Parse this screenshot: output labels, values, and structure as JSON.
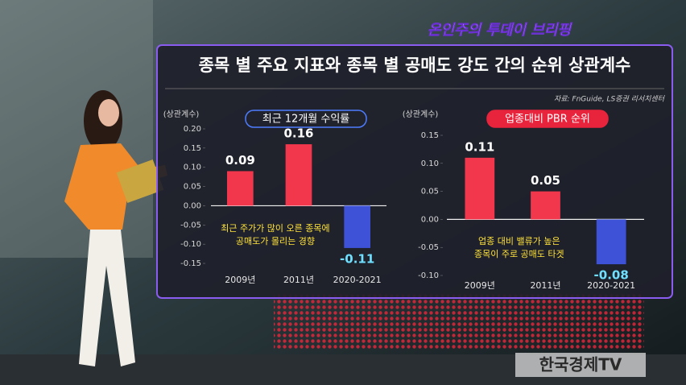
{
  "show_title": "온인주의 투데이 브리핑",
  "headline": "종목 별 주요 지표와 종목 별 공매도 강도 간의 순위 상관계수",
  "source": "자료: FnGuide, LS증권 리서치센터",
  "channel": "한국경제TV",
  "chart_data": [
    {
      "type": "bar",
      "title": "최근 12개월 수익률",
      "y_label": "(상관계수)",
      "categories": [
        "2009년",
        "2011년",
        "2020-2021"
      ],
      "values": [
        0.09,
        0.16,
        -0.11
      ],
      "colors": [
        "#f2364c",
        "#f2364c",
        "#3e52d8"
      ],
      "ylim": [
        -0.15,
        0.2
      ],
      "yticks": [
        {
          "value": 0.2,
          "label": "0.20"
        },
        0.15,
        {
          "value": 0.1,
          "label": "0.10"
        },
        0.05,
        {
          "value": 0,
          "label": "0.00"
        },
        -0.05,
        {
          "value": -0.1,
          "label": "-0.10"
        },
        -0.15
      ],
      "annotation": [
        "최근 주가가 많이 오른 종목에",
        "공매도가 몰리는 경향"
      ],
      "grid": false
    },
    {
      "type": "bar",
      "title": "업종대비 PBR 순위",
      "y_label": "(상관계수)",
      "categories": [
        "2009년",
        "2011년",
        "2020-2021"
      ],
      "values": [
        0.11,
        0.05,
        -0.08
      ],
      "colors": [
        "#f2364c",
        "#f2364c",
        "#3e52d8"
      ],
      "ylim": [
        -0.1,
        0.15
      ],
      "yticks": [
        0.15,
        {
          "value": 0.1,
          "label": "0.10"
        },
        0.05,
        {
          "value": 0,
          "label": "0.00"
        },
        -0.05,
        {
          "value": -0.1,
          "label": "-0.10"
        }
      ],
      "annotation": [
        "업종 대비 밸류가 높은",
        "종목이 주로 공매도 타겟"
      ],
      "grid": false
    }
  ]
}
